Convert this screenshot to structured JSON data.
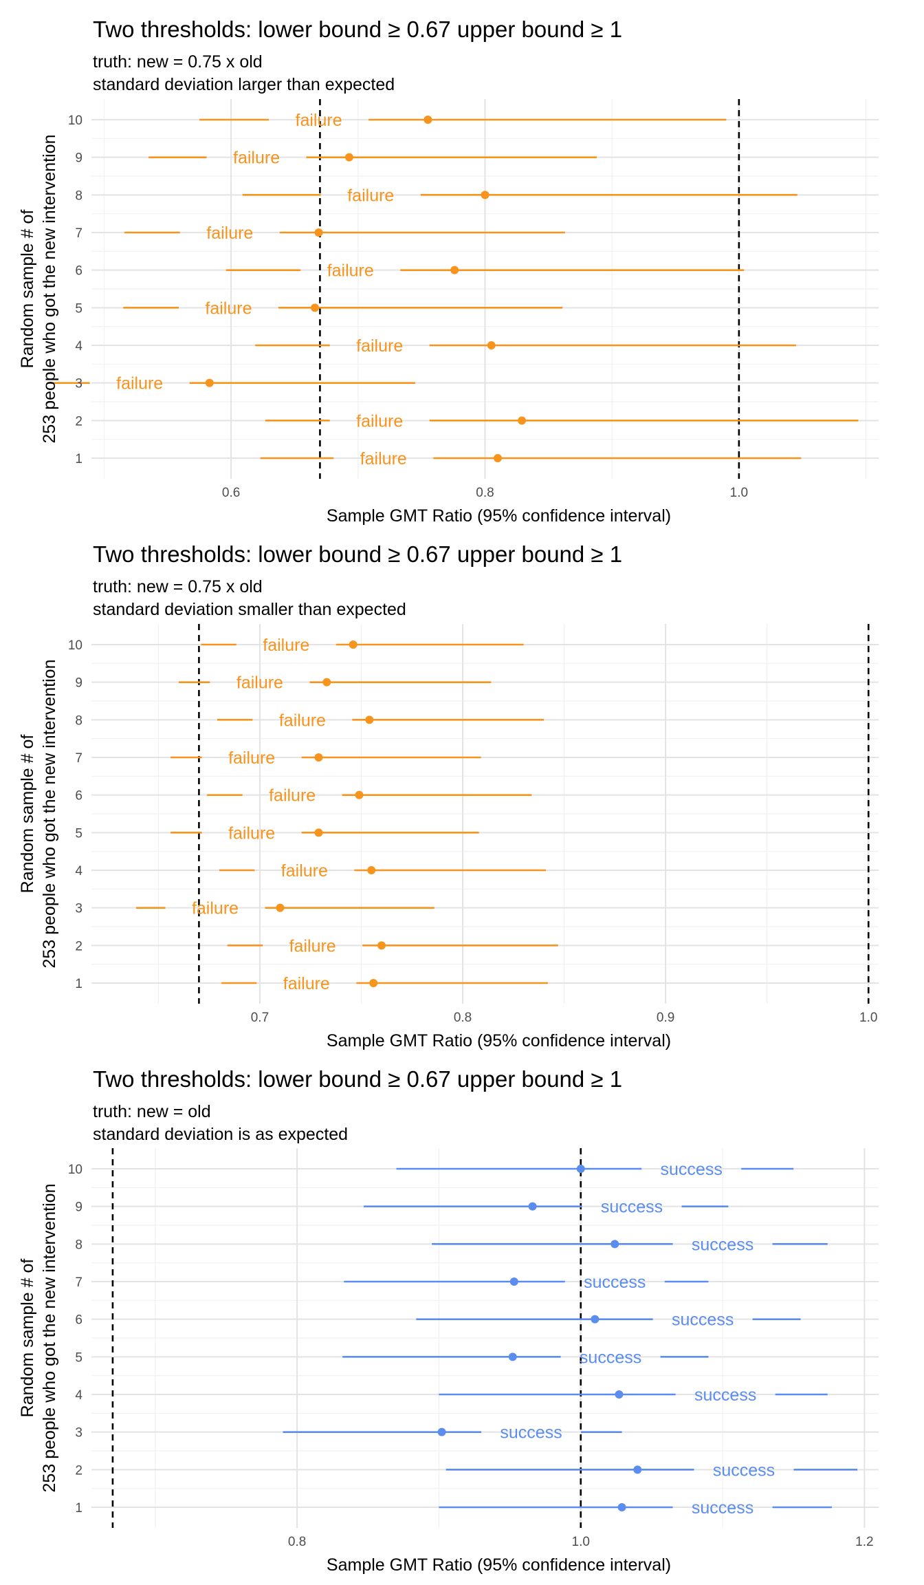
{
  "chart_data": [
    {
      "type": "errorbar",
      "title": "Two thresholds: lower bound ≥ 0.67 upper bound ≥ 1",
      "subtitle": [
        "truth: new = 0.75 x old",
        "standard deviation larger than expected"
      ],
      "ylabel": [
        "Random sample # of",
        "253 people who got the new intervention"
      ],
      "xlabel": "Sample GMT Ratio (95% confidence interval)",
      "xlim": [
        0.49,
        1.11
      ],
      "xticks": [
        0.6,
        0.8,
        1.0
      ],
      "xtick_labels": [
        "0.6",
        "0.8",
        "1.0"
      ],
      "yticks": [
        1,
        2,
        3,
        4,
        5,
        6,
        7,
        8,
        9,
        10
      ],
      "yticks_labels": [
        "1",
        "2",
        "3",
        "4",
        "5",
        "6",
        "7",
        "8",
        "9",
        "10"
      ],
      "thresholds": [
        0.67,
        1.0
      ],
      "color": "#F7941D",
      "samples": [
        {
          "y": 1,
          "estimate": 0.81,
          "lower": 0.623,
          "upper": 1.049,
          "label": "failure",
          "label_x": 0.72
        },
        {
          "y": 2,
          "estimate": 0.829,
          "lower": 0.627,
          "upper": 1.094,
          "label": "failure",
          "label_x": 0.717
        },
        {
          "y": 3,
          "estimate": 0.583,
          "lower": 0.455,
          "upper": 0.745,
          "label": "failure",
          "label_x": 0.528
        },
        {
          "y": 4,
          "estimate": 0.805,
          "lower": 0.619,
          "upper": 1.045,
          "label": "failure",
          "label_x": 0.717
        },
        {
          "y": 5,
          "estimate": 0.666,
          "lower": 0.515,
          "upper": 0.861,
          "label": "failure",
          "label_x": 0.598
        },
        {
          "y": 6,
          "estimate": 0.776,
          "lower": 0.596,
          "upper": 1.004,
          "label": "failure",
          "label_x": 0.694
        },
        {
          "y": 7,
          "estimate": 0.669,
          "lower": 0.516,
          "upper": 0.863,
          "label": "failure",
          "label_x": 0.599
        },
        {
          "y": 8,
          "estimate": 0.8,
          "lower": 0.609,
          "upper": 1.046,
          "label": "failure",
          "label_x": 0.71
        },
        {
          "y": 9,
          "estimate": 0.693,
          "lower": 0.535,
          "upper": 0.888,
          "label": "failure",
          "label_x": 0.62
        },
        {
          "y": 10,
          "estimate": 0.755,
          "lower": 0.575,
          "upper": 0.99,
          "label": "failure",
          "label_x": 0.669
        }
      ]
    },
    {
      "type": "errorbar",
      "title": "Two thresholds: lower bound ≥ 0.67 upper bound ≥ 1",
      "subtitle": [
        "truth: new = 0.75 x old",
        "standard deviation smaller than expected"
      ],
      "ylabel": [
        "Random sample # of",
        "253 people who got the new intervention"
      ],
      "xlabel": "Sample GMT Ratio (95% confidence interval)",
      "xlim": [
        0.617,
        1.005
      ],
      "xticks": [
        0.7,
        0.8,
        0.9,
        1.0
      ],
      "xtick_labels": [
        "0.7",
        "0.8",
        "0.9",
        "1.0"
      ],
      "yticks": [
        1,
        2,
        3,
        4,
        5,
        6,
        7,
        8,
        9,
        10
      ],
      "yticks_labels": [
        "1",
        "2",
        "3",
        "4",
        "5",
        "6",
        "7",
        "8",
        "9",
        "10"
      ],
      "thresholds": [
        0.67,
        1.0
      ],
      "color": "#F7941D",
      "samples": [
        {
          "y": 1,
          "estimate": 0.756,
          "lower": 0.681,
          "upper": 0.842,
          "label": "failure",
          "label_x": 0.723
        },
        {
          "y": 2,
          "estimate": 0.76,
          "lower": 0.684,
          "upper": 0.847,
          "label": "failure",
          "label_x": 0.726
        },
        {
          "y": 3,
          "estimate": 0.71,
          "lower": 0.639,
          "upper": 0.786,
          "label": "failure",
          "label_x": 0.678
        },
        {
          "y": 4,
          "estimate": 0.755,
          "lower": 0.68,
          "upper": 0.841,
          "label": "failure",
          "label_x": 0.722
        },
        {
          "y": 5,
          "estimate": 0.729,
          "lower": 0.656,
          "upper": 0.808,
          "label": "failure",
          "label_x": 0.696
        },
        {
          "y": 6,
          "estimate": 0.749,
          "lower": 0.674,
          "upper": 0.834,
          "label": "failure",
          "label_x": 0.716
        },
        {
          "y": 7,
          "estimate": 0.729,
          "lower": 0.656,
          "upper": 0.809,
          "label": "failure",
          "label_x": 0.696
        },
        {
          "y": 8,
          "estimate": 0.754,
          "lower": 0.679,
          "upper": 0.84,
          "label": "failure",
          "label_x": 0.721
        },
        {
          "y": 9,
          "estimate": 0.733,
          "lower": 0.66,
          "upper": 0.814,
          "label": "failure",
          "label_x": 0.7
        },
        {
          "y": 10,
          "estimate": 0.746,
          "lower": 0.671,
          "upper": 0.83,
          "label": "failure",
          "label_x": 0.713
        }
      ]
    },
    {
      "type": "errorbar",
      "title": "Two thresholds: lower bound ≥ 0.67 upper bound ≥ 1",
      "subtitle": [
        "truth: new = old",
        "standard deviation is as expected"
      ],
      "ylabel": [
        "Random sample # of",
        "253 people who got the new intervention"
      ],
      "xlabel": "Sample GMT Ratio (95% confidence interval)",
      "xlim": [
        0.655,
        1.21
      ],
      "xticks": [
        0.8,
        1.0,
        1.2
      ],
      "xtick_labels": [
        "0.8",
        "1.0",
        "1.2"
      ],
      "yticks": [
        1,
        2,
        3,
        4,
        5,
        6,
        7,
        8,
        9,
        10
      ],
      "yticks_labels": [
        "1",
        "2",
        "3",
        "4",
        "5",
        "6",
        "7",
        "8",
        "9",
        "10"
      ],
      "thresholds": [
        0.67,
        1.0
      ],
      "color": "#5B8DEF",
      "samples": [
        {
          "y": 1,
          "estimate": 1.029,
          "lower": 0.9,
          "upper": 1.177,
          "label": "success",
          "label_x": 1.1
        },
        {
          "y": 2,
          "estimate": 1.04,
          "lower": 0.905,
          "upper": 1.195,
          "label": "success",
          "label_x": 1.115
        },
        {
          "y": 3,
          "estimate": 0.902,
          "lower": 0.79,
          "upper": 1.029,
          "label": "success",
          "label_x": 0.965
        },
        {
          "y": 4,
          "estimate": 1.027,
          "lower": 0.9,
          "upper": 1.174,
          "label": "success",
          "label_x": 1.102
        },
        {
          "y": 5,
          "estimate": 0.952,
          "lower": 0.832,
          "upper": 1.09,
          "label": "success",
          "label_x": 1.021
        },
        {
          "y": 6,
          "estimate": 1.01,
          "lower": 0.884,
          "upper": 1.155,
          "label": "success",
          "label_x": 1.086
        },
        {
          "y": 7,
          "estimate": 0.953,
          "lower": 0.833,
          "upper": 1.09,
          "label": "success",
          "label_x": 1.024
        },
        {
          "y": 8,
          "estimate": 1.024,
          "lower": 0.895,
          "upper": 1.174,
          "label": "success",
          "label_x": 1.1
        },
        {
          "y": 9,
          "estimate": 0.966,
          "lower": 0.847,
          "upper": 1.104,
          "label": "success",
          "label_x": 1.036
        },
        {
          "y": 10,
          "estimate": 1.0,
          "lower": 0.87,
          "upper": 1.15,
          "label": "success",
          "label_x": 1.078
        }
      ]
    }
  ]
}
